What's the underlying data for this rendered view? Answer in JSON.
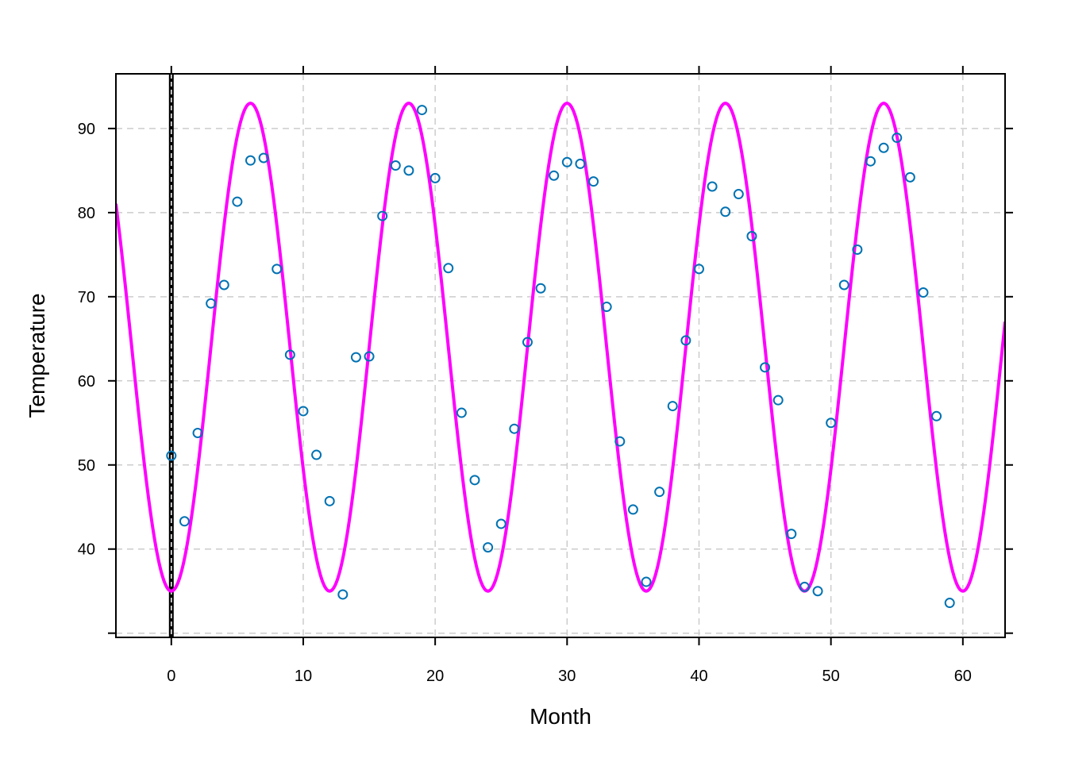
{
  "chart_data": {
    "type": "scatter",
    "xlabel": "Month",
    "ylabel": "Temperature",
    "xlim": [
      -4.2,
      63.2
    ],
    "ylim": [
      29.5,
      96.5
    ],
    "x_ticks": [
      0,
      10,
      20,
      30,
      40,
      50,
      60
    ],
    "y_ticks": [
      40,
      50,
      60,
      70,
      80,
      90
    ],
    "grid": true,
    "colors": {
      "points": "#0072B2",
      "fit_curve": "#ff00ff",
      "reference_line": "#000000",
      "grid": "#cccccc"
    },
    "reference_line_x": 0,
    "fitted_curve": {
      "form": "cosine",
      "mean": 64,
      "amplitude": -29,
      "period": 12,
      "phase": 0
    },
    "points": [
      {
        "x": 0,
        "y": 51.1
      },
      {
        "x": 1,
        "y": 43.3
      },
      {
        "x": 2,
        "y": 53.8
      },
      {
        "x": 3,
        "y": 69.2
      },
      {
        "x": 4,
        "y": 71.4
      },
      {
        "x": 5,
        "y": 81.3
      },
      {
        "x": 6,
        "y": 86.2
      },
      {
        "x": 7,
        "y": 86.5
      },
      {
        "x": 8,
        "y": 73.3
      },
      {
        "x": 9,
        "y": 63.1
      },
      {
        "x": 10,
        "y": 56.4
      },
      {
        "x": 11,
        "y": 51.2
      },
      {
        "x": 12,
        "y": 45.7
      },
      {
        "x": 13,
        "y": 34.6
      },
      {
        "x": 14,
        "y": 62.8
      },
      {
        "x": 15,
        "y": 62.9
      },
      {
        "x": 16,
        "y": 79.6
      },
      {
        "x": 17,
        "y": 85.6
      },
      {
        "x": 18,
        "y": 85.0
      },
      {
        "x": 19,
        "y": 92.2
      },
      {
        "x": 20,
        "y": 84.1
      },
      {
        "x": 21,
        "y": 73.4
      },
      {
        "x": 22,
        "y": 56.2
      },
      {
        "x": 23,
        "y": 48.2
      },
      {
        "x": 24,
        "y": 40.2
      },
      {
        "x": 25,
        "y": 43.0
      },
      {
        "x": 26,
        "y": 54.3
      },
      {
        "x": 27,
        "y": 64.6
      },
      {
        "x": 28,
        "y": 71.0
      },
      {
        "x": 29,
        "y": 84.4
      },
      {
        "x": 30,
        "y": 86.0
      },
      {
        "x": 31,
        "y": 85.8
      },
      {
        "x": 32,
        "y": 83.7
      },
      {
        "x": 33,
        "y": 68.8
      },
      {
        "x": 34,
        "y": 52.8
      },
      {
        "x": 35,
        "y": 44.7
      },
      {
        "x": 36,
        "y": 36.1
      },
      {
        "x": 37,
        "y": 46.8
      },
      {
        "x": 38,
        "y": 57.0
      },
      {
        "x": 39,
        "y": 64.8
      },
      {
        "x": 40,
        "y": 73.3
      },
      {
        "x": 41,
        "y": 83.1
      },
      {
        "x": 42,
        "y": 80.1
      },
      {
        "x": 43,
        "y": 82.2
      },
      {
        "x": 44,
        "y": 77.2
      },
      {
        "x": 45,
        "y": 61.6
      },
      {
        "x": 46,
        "y": 57.7
      },
      {
        "x": 47,
        "y": 41.8
      },
      {
        "x": 48,
        "y": 35.5
      },
      {
        "x": 49,
        "y": 35.0
      },
      {
        "x": 50,
        "y": 55.0
      },
      {
        "x": 51,
        "y": 71.4
      },
      {
        "x": 52,
        "y": 75.6
      },
      {
        "x": 53,
        "y": 86.1
      },
      {
        "x": 54,
        "y": 87.7
      },
      {
        "x": 55,
        "y": 88.9
      },
      {
        "x": 56,
        "y": 84.2
      },
      {
        "x": 57,
        "y": 70.5
      },
      {
        "x": 58,
        "y": 55.8
      },
      {
        "x": 59,
        "y": 33.6
      }
    ]
  }
}
